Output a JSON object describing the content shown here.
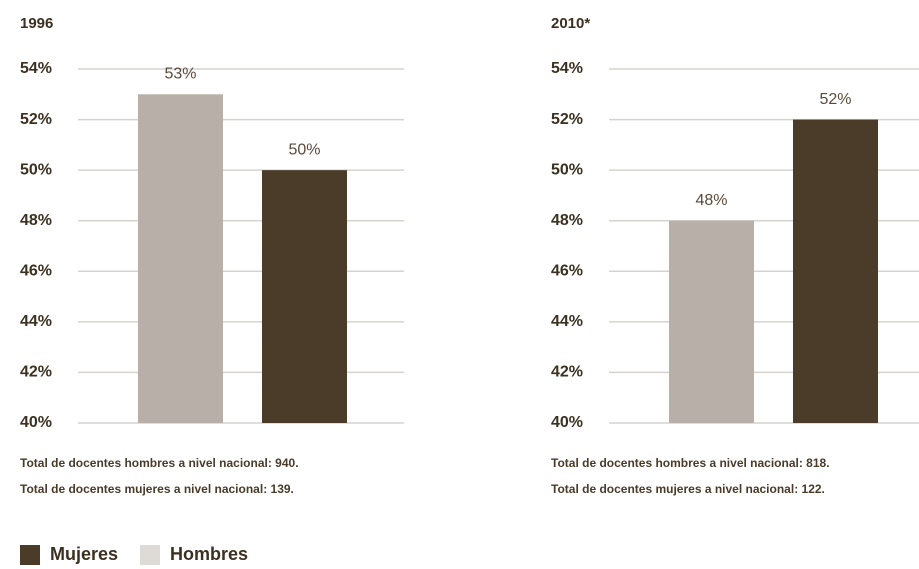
{
  "colors": {
    "mujeres": "#4b3c2a",
    "hombres": "#b8b0a8",
    "hombres_legend": "#dedad5"
  },
  "legend": [
    {
      "label": "Mujeres",
      "color": "#4b3c2a"
    },
    {
      "label": "Hombres",
      "color": "#dedad5"
    }
  ],
  "chart_data": [
    {
      "type": "bar",
      "title": "1996",
      "categories": [
        "Hombres",
        "Mujeres"
      ],
      "values": [
        53,
        50
      ],
      "data_labels": [
        "53%",
        "50%"
      ],
      "colors": [
        "#b8b0a8",
        "#4b3c2a"
      ],
      "ylim": [
        40,
        54
      ],
      "yticks": [
        "40%",
        "42%",
        "44%",
        "46%",
        "48%",
        "50%",
        "52%",
        "54%"
      ],
      "grid": true,
      "notes": [
        "Total de docentes hombres a nivel nacional: 940.",
        "Total de docentes mujeres a nivel nacional: 139."
      ]
    },
    {
      "type": "bar",
      "title": "2010*",
      "categories": [
        "Hombres",
        "Mujeres"
      ],
      "values": [
        48,
        52
      ],
      "data_labels": [
        "48%",
        "52%"
      ],
      "colors": [
        "#b8b0a8",
        "#4b3c2a"
      ],
      "ylim": [
        40,
        54
      ],
      "yticks": [
        "40%",
        "42%",
        "44%",
        "46%",
        "48%",
        "50%",
        "52%",
        "54%"
      ],
      "grid": true,
      "notes": [
        "Total de docentes hombres a nivel nacional: 818.",
        "Total de docentes mujeres a nivel nacional: 122."
      ]
    }
  ]
}
